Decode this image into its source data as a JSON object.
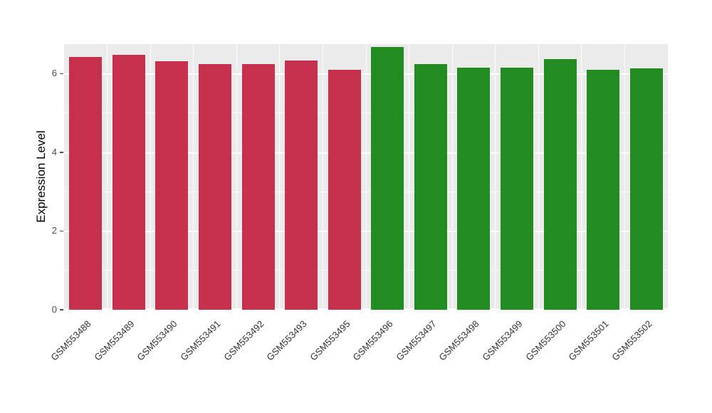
{
  "chart_data": {
    "type": "bar",
    "title": "",
    "xlabel": "",
    "ylabel": "Expression Level",
    "ylim": [
      0,
      6.75
    ],
    "yticks": [
      0,
      2,
      4,
      6
    ],
    "yticks_minor": [
      1,
      3,
      5
    ],
    "grid": "on",
    "legend": "none",
    "categories": [
      "GSM553488",
      "GSM553489",
      "GSM553490",
      "GSM553491",
      "GSM553492",
      "GSM553493",
      "GSM553495",
      "GSM553496",
      "GSM553497",
      "GSM553498",
      "GSM553499",
      "GSM553500",
      "GSM553501",
      "GSM553502"
    ],
    "values": [
      6.42,
      6.47,
      6.32,
      6.25,
      6.25,
      6.34,
      6.1,
      6.67,
      6.25,
      6.16,
      6.16,
      6.37,
      6.1,
      6.13
    ],
    "bar_groups": [
      "red",
      "red",
      "red",
      "red",
      "red",
      "red",
      "red",
      "green",
      "green",
      "green",
      "green",
      "green",
      "green",
      "green"
    ],
    "group_colors": {
      "red": "#C5304C",
      "green": "#228B22"
    },
    "panel_background": "#EBEBEB",
    "grid_color": "#FFFFFF"
  }
}
